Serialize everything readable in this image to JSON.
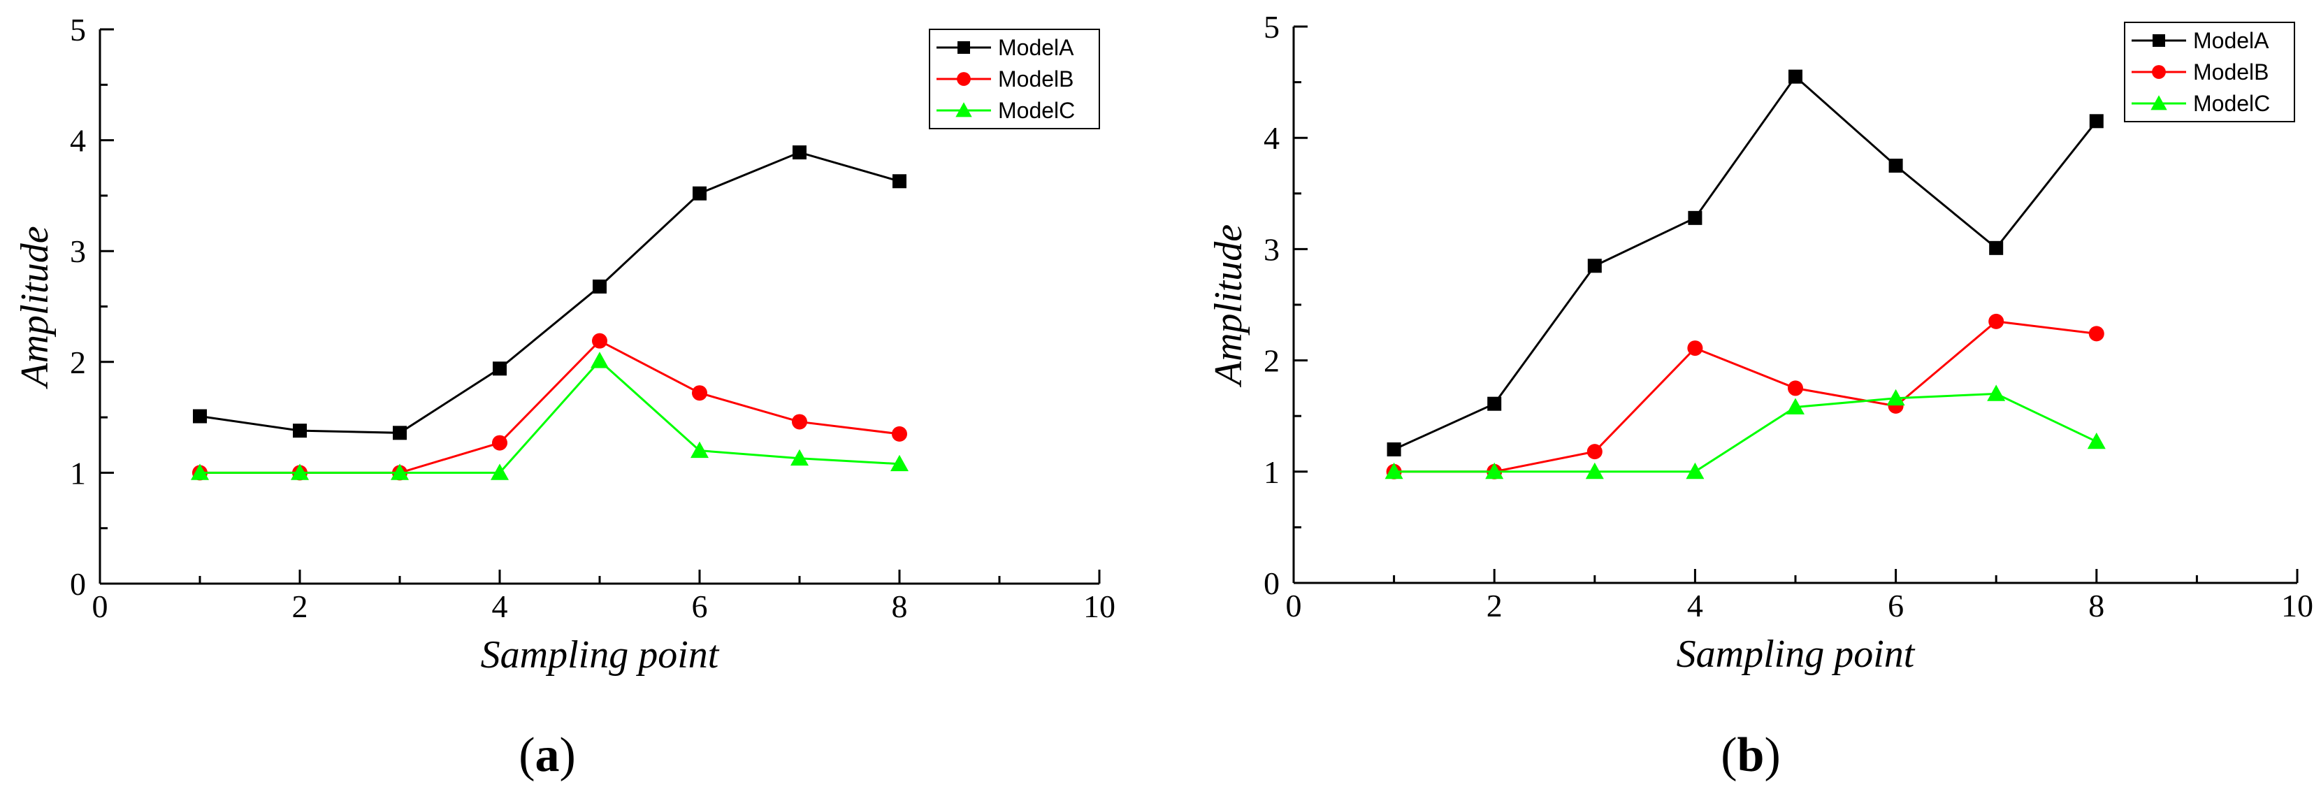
{
  "chart_data": [
    {
      "type": "line",
      "caption": "a",
      "xlabel": "Sampling point",
      "ylabel": "Amplitude",
      "xlim": [
        0,
        10
      ],
      "ylim": [
        0,
        5
      ],
      "x_ticks": [
        "0",
        "2",
        "4",
        "6",
        "8",
        "10"
      ],
      "y_ticks": [
        "0",
        "1",
        "2",
        "3",
        "4",
        "5"
      ],
      "legend_position": "top-right",
      "x": [
        1,
        2,
        3,
        4,
        5,
        6,
        7,
        8
      ],
      "series": [
        {
          "name": "ModelA",
          "color": "#000000",
          "marker": "square",
          "values": [
            1.51,
            1.38,
            1.36,
            1.94,
            2.68,
            3.52,
            3.89,
            3.63
          ]
        },
        {
          "name": "ModelB",
          "color": "#ff0000",
          "marker": "circle",
          "values": [
            1.0,
            1.0,
            1.0,
            1.27,
            2.19,
            1.72,
            1.46,
            1.35
          ]
        },
        {
          "name": "ModelC",
          "color": "#00ff00",
          "marker": "triangle",
          "values": [
            1.0,
            1.0,
            1.0,
            1.0,
            2.01,
            1.2,
            1.13,
            1.08
          ]
        }
      ]
    },
    {
      "type": "line",
      "caption": "b",
      "xlabel": "Sampling point",
      "ylabel": "Amplitude",
      "xlim": [
        0,
        10
      ],
      "ylim": [
        0,
        5
      ],
      "x_ticks": [
        "0",
        "2",
        "4",
        "6",
        "8",
        "10"
      ],
      "y_ticks": [
        "0",
        "1",
        "2",
        "3",
        "4",
        "5"
      ],
      "legend_position": "top-right",
      "x": [
        1,
        2,
        3,
        4,
        5,
        6,
        7,
        8
      ],
      "series": [
        {
          "name": "ModelA",
          "color": "#000000",
          "marker": "square",
          "values": [
            1.2,
            1.61,
            2.85,
            3.28,
            4.55,
            3.75,
            3.01,
            4.15
          ]
        },
        {
          "name": "ModelB",
          "color": "#ff0000",
          "marker": "circle",
          "values": [
            1.0,
            1.0,
            1.18,
            2.11,
            1.75,
            1.59,
            2.35,
            2.24
          ]
        },
        {
          "name": "ModelC",
          "color": "#00ff00",
          "marker": "triangle",
          "values": [
            1.0,
            1.0,
            1.0,
            1.0,
            1.58,
            1.66,
            1.7,
            1.27
          ]
        }
      ]
    }
  ]
}
